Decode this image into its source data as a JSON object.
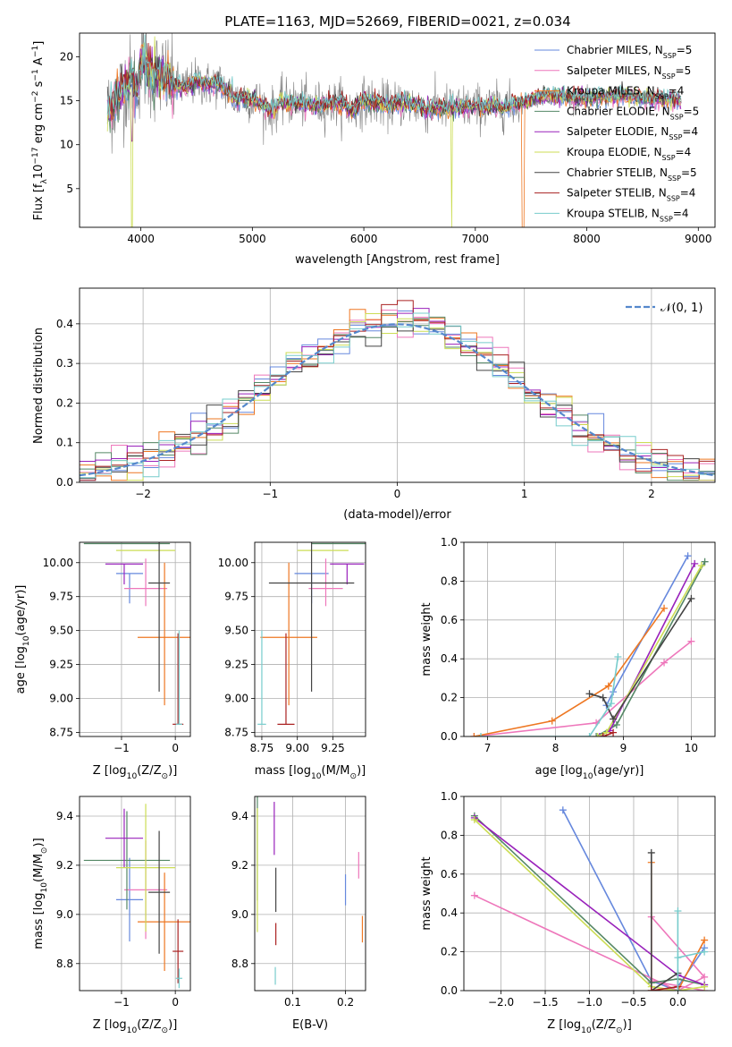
{
  "figure": {
    "title": "PLATE=1163, MJD=52669, FIBERID=0021, z=0.034"
  },
  "colors": {
    "Chabrier MILES": "#6688dd",
    "Salpeter MILES": "#ee77bb",
    "Kroupa MILES": "#ee7722",
    "Chabrier ELODIE": "#558866",
    "Salpeter ELODIE": "#9922bb",
    "Kroupa ELODIE": "#ccdd55",
    "Chabrier STELIB": "#444444",
    "Salpeter STELIB": "#aa2222",
    "Kroupa STELIB": "#77cccc",
    "data": "#7f7f7f",
    "normal": "#5588cc"
  },
  "chart_data": [
    {
      "id": "spectrum",
      "type": "line",
      "xlabel": "wavelength [Angstrom, rest frame]",
      "ylabel": "Flux [f",
      "ylabel_sub": "λ",
      "ylabel_rest": "10",
      "ylabel_sup": "−17",
      "ylabel_units": " erg cm",
      "ylabel_sup2": "−2",
      "ylabel_s": " s",
      "ylabel_sup3": "−1",
      "ylabel_A": " A",
      "ylabel_sup4": "−1",
      "ylabel_end": "]",
      "xlim": [
        3450,
        9150
      ],
      "ylim": [
        0.6,
        22.7
      ],
      "xticks": [
        "4000",
        "5000",
        "6000",
        "7000",
        "8000",
        "9000"
      ],
      "xtick_values": [
        4000,
        5000,
        6000,
        7000,
        8000,
        9000
      ],
      "yticks": [
        "5",
        "10",
        "15",
        "20"
      ],
      "ytick_values": [
        5,
        10,
        15,
        20
      ],
      "legend": [
        {
          "name": "Chabrier MILES",
          "n": "5"
        },
        {
          "name": "Salpeter MILES",
          "n": "5"
        },
        {
          "name": "Kroupa MILES",
          "n": "4"
        },
        {
          "name": "Chabrier ELODIE",
          "n": "5"
        },
        {
          "name": "Salpeter ELODIE",
          "n": "4"
        },
        {
          "name": "Kroupa ELODIE",
          "n": "4"
        },
        {
          "name": "Chabrier STELIB",
          "n": "5"
        },
        {
          "name": "Salpeter STELIB",
          "n": "4"
        },
        {
          "name": "Kroupa STELIB",
          "n": "4"
        }
      ],
      "legend_prefix": ", N",
      "legend_sub": "SSP",
      "legend_suffix": "=",
      "data_profile": [
        [
          3700,
          13.5
        ],
        [
          3780,
          15.2
        ],
        [
          3850,
          16.5
        ],
        [
          3920,
          17.5
        ],
        [
          3970,
          16.0
        ],
        [
          4000,
          19.5
        ],
        [
          4050,
          19.0
        ],
        [
          4100,
          18.0
        ],
        [
          4200,
          17.8
        ],
        [
          4300,
          16.8
        ],
        [
          4400,
          16.5
        ],
        [
          4500,
          17.2
        ],
        [
          4600,
          16.8
        ],
        [
          4700,
          17.0
        ],
        [
          4800,
          15.8
        ],
        [
          4860,
          15.0
        ],
        [
          4900,
          15.5
        ],
        [
          5000,
          15.2
        ],
        [
          5100,
          14.5
        ],
        [
          5175,
          13.8
        ],
        [
          5250,
          14.8
        ],
        [
          5400,
          14.8
        ],
        [
          5600,
          14.5
        ],
        [
          5800,
          14.8
        ],
        [
          5890,
          13.8
        ],
        [
          6000,
          15.0
        ],
        [
          6200,
          14.5
        ],
        [
          6400,
          14.8
        ],
        [
          6563,
          14.0
        ],
        [
          6700,
          14.2
        ],
        [
          6900,
          14.3
        ],
        [
          7100,
          14.3
        ],
        [
          7300,
          14.4
        ],
        [
          7500,
          15.2
        ],
        [
          7700,
          15.6
        ],
        [
          7900,
          15.2
        ],
        [
          8100,
          15.4
        ],
        [
          8300,
          15.6
        ],
        [
          8500,
          15.3
        ],
        [
          8700,
          15.2
        ],
        [
          8850,
          15.0
        ]
      ]
    },
    {
      "id": "residuals",
      "type": "step-histogram",
      "xlabel": "(data-model)/error",
      "ylabel": "Normed distribution",
      "xlim": [
        -2.5,
        2.5
      ],
      "ylim": [
        0,
        0.49
      ],
      "xticks": [
        "−2",
        "−1",
        "0",
        "1",
        "2"
      ],
      "xtick_values": [
        -2,
        -1,
        0,
        1,
        2
      ],
      "yticks": [
        "0.0",
        "0.1",
        "0.2",
        "0.3",
        "0.4"
      ],
      "ytick_values": [
        0,
        0.1,
        0.2,
        0.3,
        0.4
      ],
      "bins": [
        -2.5,
        2.5,
        40
      ],
      "legend_label": "𝒩(0, 1)"
    },
    {
      "id": "age-vs-Z",
      "type": "errorbar",
      "xlabel": "Z [log",
      "xlabel_sub": "10",
      "xlabel_rest": "(Z/Z",
      "xlabel_sub2": "⊙",
      "xlabel_end": ")]",
      "ylabel": "age  [log",
      "ylabel_sub": "10",
      "ylabel_rest": "(age/yr)]",
      "xlim": [
        -1.78,
        0.28
      ],
      "ylim": [
        8.72,
        10.15
      ],
      "xticks": [
        "−1",
        "0"
      ],
      "xtick_values": [
        -1,
        0
      ],
      "yticks": [
        "8.75",
        "9.00",
        "9.25",
        "9.50",
        "9.75",
        "10.00"
      ],
      "ytick_values": [
        8.75,
        9.0,
        9.25,
        9.5,
        9.75,
        10.0
      ]
    },
    {
      "id": "age-vs-mass",
      "type": "errorbar",
      "xlabel": "mass [log",
      "xlabel_sub": "10",
      "xlabel_rest": "(M/M",
      "xlabel_sub2": "⊙",
      "xlabel_end": ")]",
      "xlim": [
        8.7,
        9.48
      ],
      "ylim": [
        8.72,
        10.15
      ],
      "xticks": [
        "8.75",
        "9.00",
        "9.25"
      ],
      "xtick_values": [
        8.75,
        9.0,
        9.25
      ],
      "yticks": [
        "8.75",
        "9.00",
        "9.25",
        "9.50",
        "9.75",
        "10.00"
      ],
      "ytick_values": [
        8.75,
        9.0,
        9.25,
        9.5,
        9.75,
        10.0
      ]
    },
    {
      "id": "weight-vs-age",
      "type": "line",
      "xlabel": "age  [log",
      "xlabel_sub": "10",
      "xlabel_rest": "(age/yr)]",
      "ylabel": "mass weight",
      "xlim": [
        6.65,
        10.35
      ],
      "ylim": [
        0,
        1
      ],
      "xticks": [
        "7",
        "8",
        "9",
        "10"
      ],
      "xtick_values": [
        7,
        8,
        9,
        10
      ],
      "yticks": [
        "0.0",
        "0.2",
        "0.4",
        "0.6",
        "0.8",
        "1.0"
      ],
      "ytick_values": [
        0,
        0.2,
        0.4,
        0.6,
        0.8,
        1.0
      ],
      "series": [
        {
          "model": "Chabrier MILES",
          "x": [
            8.75,
            8.85,
            9.95
          ],
          "y": [
            0.16,
            0.23,
            0.93
          ]
        },
        {
          "model": "Salpeter MILES",
          "x": [
            6.8,
            8.6,
            9.6,
            10.0
          ],
          "y": [
            0.0,
            0.07,
            0.38,
            0.49
          ]
        },
        {
          "model": "Kroupa MILES",
          "x": [
            6.8,
            7.95,
            8.78,
            9.6
          ],
          "y": [
            0.0,
            0.08,
            0.26,
            0.66
          ]
        },
        {
          "model": "Chabrier ELODIE",
          "x": [
            8.6,
            8.9,
            10.2
          ],
          "y": [
            0.0,
            0.06,
            0.9
          ]
        },
        {
          "model": "Salpeter ELODIE",
          "x": [
            8.65,
            8.8,
            10.05
          ],
          "y": [
            0.0,
            0.03,
            0.89
          ]
        },
        {
          "model": "Kroupa ELODIE",
          "x": [
            8.62,
            8.75,
            10.15
          ],
          "y": [
            0.0,
            0.02,
            0.88
          ]
        },
        {
          "model": "Chabrier STELIB",
          "x": [
            8.5,
            8.7,
            8.85,
            10.0
          ],
          "y": [
            0.22,
            0.2,
            0.09,
            0.71
          ]
        },
        {
          "model": "Salpeter STELIB",
          "x": [
            8.7,
            8.85
          ],
          "y": [
            0.0,
            0.02
          ]
        },
        {
          "model": "Kroupa STELIB",
          "x": [
            6.9,
            8.5,
            8.82,
            8.92
          ],
          "y": [
            0.0,
            0.0,
            0.17,
            0.41
          ]
        }
      ]
    },
    {
      "id": "mass-vs-Z",
      "type": "errorbar",
      "xlabel": "Z [log",
      "xlabel_sub": "10",
      "xlabel_rest": "(Z/Z",
      "xlabel_sub2": "⊙",
      "xlabel_end": ")]",
      "ylabel": "mass [log",
      "ylabel_sub": "10",
      "ylabel_rest": "(M/M",
      "ylabel_sub2": "⊙",
      "ylabel_end": ")]",
      "xlim": [
        -1.78,
        0.28
      ],
      "ylim": [
        8.69,
        9.48
      ],
      "xticks": [
        "−1",
        "0"
      ],
      "xtick_values": [
        -1,
        0
      ],
      "yticks": [
        "8.8",
        "9.0",
        "9.2",
        "9.4"
      ],
      "ytick_values": [
        8.8,
        9.0,
        9.2,
        9.4
      ]
    },
    {
      "id": "mass-vs-ebv",
      "type": "errorbar",
      "xlabel": "E(B-V)",
      "xlim": [
        0.028,
        0.238
      ],
      "ylim": [
        8.69,
        9.48
      ],
      "xticks": [
        "0.1",
        "0.2"
      ],
      "xtick_values": [
        0.1,
        0.2
      ],
      "yticks": [
        "8.8",
        "9.0",
        "9.2",
        "9.4"
      ],
      "ytick_values": [
        8.8,
        9.0,
        9.2,
        9.4
      ]
    },
    {
      "id": "weight-vs-Z",
      "type": "line",
      "xlabel": "Z [log",
      "xlabel_sub": "10",
      "xlabel_rest": "(Z/Z",
      "xlabel_sub2": "⊙",
      "xlabel_end": ")]",
      "ylabel": "mass weight",
      "xlim": [
        -2.42,
        0.42
      ],
      "ylim": [
        0,
        1
      ],
      "xticks": [
        "−2.0",
        "−1.5",
        "−1.0",
        "−0.5",
        "0.0"
      ],
      "xtick_values": [
        -2.0,
        -1.5,
        -1.0,
        -0.5,
        0.0
      ],
      "yticks": [
        "0.0",
        "0.2",
        "0.4",
        "0.6",
        "0.8",
        "1.0"
      ],
      "ytick_values": [
        0,
        0.2,
        0.4,
        0.6,
        0.8,
        1.0
      ],
      "series": [
        {
          "model": "Chabrier MILES",
          "x": [
            -1.3,
            -0.3,
            0.0,
            0.0,
            0.3
          ],
          "y": [
            0.93,
            0.05,
            0.0,
            0.02,
            0.22
          ]
        },
        {
          "model": "Salpeter MILES",
          "x": [
            -2.3,
            0.0,
            0.3,
            -0.3,
            -0.3,
            0.3
          ],
          "y": [
            0.49,
            0.0,
            0.07,
            0.38,
            0.05,
            0.0
          ]
        },
        {
          "model": "Kroupa MILES",
          "x": [
            -0.3,
            -0.3,
            0.0,
            0.3
          ],
          "y": [
            0.66,
            0.0,
            0.0,
            0.26
          ]
        },
        {
          "model": "Chabrier ELODIE",
          "x": [
            -2.3,
            -0.3,
            0.0,
            0.3
          ],
          "y": [
            0.9,
            0.04,
            0.06,
            0.03
          ]
        },
        {
          "model": "Salpeter ELODIE",
          "x": [
            -2.3,
            0.0,
            0.3
          ],
          "y": [
            0.89,
            0.08,
            0.03
          ]
        },
        {
          "model": "Kroupa ELODIE",
          "x": [
            -2.3,
            -0.3,
            0.0,
            0.3
          ],
          "y": [
            0.88,
            0.02,
            0.0,
            0.02
          ]
        },
        {
          "model": "Chabrier STELIB",
          "x": [
            -0.3,
            -0.3,
            0.0,
            0.0
          ],
          "y": [
            0.71,
            0.0,
            0.09,
            0.0
          ]
        },
        {
          "model": "Salpeter STELIB",
          "x": [
            -0.3,
            0.0
          ],
          "y": [
            0.0,
            0.02
          ]
        },
        {
          "model": "Kroupa STELIB",
          "x": [
            0.0,
            0.0,
            0.0,
            0.3
          ],
          "y": [
            0.41,
            0.0,
            0.17,
            0.2
          ]
        }
      ]
    }
  ],
  "errorbars": [
    {
      "model": "Chabrier MILES",
      "Z": -0.85,
      "Zerr": 0.25,
      "age": 9.92,
      "ageerr": [
        0.22,
        0.0
      ],
      "mass": 9.1,
      "masserr": 0.12,
      "ebv": 0.2,
      "ebverr": 0.07,
      "massZ": 9.06,
      "massZerr": 0.17
    },
    {
      "model": "Salpeter MILES",
      "Z": -0.55,
      "Zerr": 0.4,
      "age": 9.81,
      "ageerr": [
        0.13,
        0.22
      ],
      "mass": 9.2,
      "masserr": 0.12,
      "ebv": 0.225,
      "ebverr": 0.06,
      "massZ": 9.1,
      "massZerr": 0.2
    },
    {
      "model": "Kroupa MILES",
      "Z": -0.2,
      "Zerr": 0.5,
      "age": 9.45,
      "ageerr": [
        0.5,
        0.55
      ],
      "mass": 8.94,
      "masserr": 0.2,
      "ebv": 0.232,
      "ebverr": 0.06,
      "massZ": 8.97,
      "massZerr": 0.2
    },
    {
      "model": "Chabrier ELODIE",
      "Z": -0.9,
      "Zerr": 0.8,
      "age": 10.14,
      "ageerr": [
        0.0,
        0.0
      ],
      "mass": 9.3,
      "masserr": 0.2,
      "ebv": 0.033,
      "ebverr": 0.27,
      "massZ": 9.22,
      "massZerr": 0.2
    },
    {
      "model": "Salpeter ELODIE",
      "Z": -0.95,
      "Zerr": 0.35,
      "age": 9.99,
      "ageerr": [
        0.15,
        0.0
      ],
      "mass": 9.35,
      "masserr": 0.12,
      "ebv": 0.065,
      "ebverr": 0.12,
      "massZ": 9.31,
      "massZerr": 0.12
    },
    {
      "model": "Kroupa ELODIE",
      "Z": -0.55,
      "Zerr": 0.55,
      "age": 10.09,
      "ageerr": [
        0.0,
        0.0
      ],
      "mass": 9.18,
      "masserr": 0.18,
      "ebv": 0.033,
      "ebverr": 0.28,
      "massZ": 9.19,
      "massZerr": 0.26
    },
    {
      "model": "Chabrier STELIB",
      "Z": -0.3,
      "Zerr": 0.2,
      "age": 9.85,
      "ageerr": [
        0.8,
        0.3
      ],
      "mass": 9.1,
      "masserr": 0.3,
      "ebv": 0.068,
      "ebverr": 0.1,
      "massZ": 9.09,
      "massZerr": 0.25
    },
    {
      "model": "Salpeter STELIB",
      "Z": 0.05,
      "Zerr": 0.1,
      "age": 8.81,
      "ageerr": [
        0.0,
        0.67
      ],
      "mass": 8.92,
      "masserr": 0.06,
      "ebv": 0.068,
      "ebverr": 0.05,
      "massZ": 8.85,
      "massZerr": 0.13
    },
    {
      "model": "Kroupa STELIB",
      "Z": 0.07,
      "Zerr": 0.06,
      "age": 8.81,
      "ageerr": [
        0.0,
        0.69
      ],
      "mass": 8.75,
      "masserr": 0.03,
      "ebv": 0.067,
      "ebverr": 0.04,
      "massZ": 8.74,
      "massZerr": 0.04
    }
  ]
}
